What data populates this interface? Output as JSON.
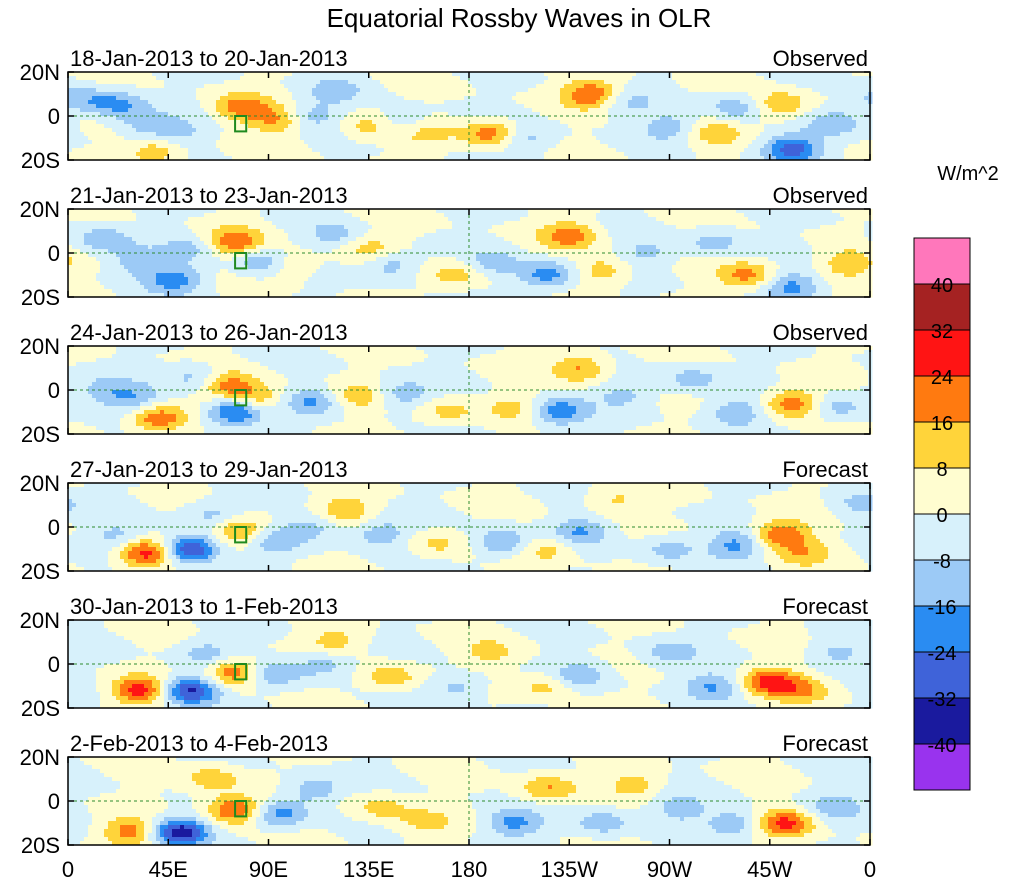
{
  "chart_data": {
    "type": "heatmap",
    "title": "Equatorial Rossby Waves in OLR",
    "colorbar": {
      "label": "W/m^2",
      "levels": [
        -40,
        -32,
        -24,
        -16,
        -8,
        0,
        8,
        16,
        24,
        32,
        40
      ],
      "level_labels": [
        "-40",
        "-32",
        "-24",
        "-16",
        "-8",
        "0",
        "8",
        "16",
        "24",
        "32",
        "40"
      ],
      "colors": [
        "#9933ee",
        "#1a1a9e",
        "#3f63d9",
        "#2a8cf2",
        "#9ccaf6",
        "#d7f1fb",
        "#fffdd0",
        "#ffd43a",
        "#ff7a10",
        "#ff1414",
        "#a52222",
        "#ff77bb"
      ]
    },
    "x_axis": {
      "values": [
        0,
        45,
        90,
        135,
        180,
        225,
        270,
        315,
        360
      ],
      "tick_labels": [
        "0",
        "45E",
        "90E",
        "135E",
        "180",
        "135W",
        "90W",
        "45W",
        "0"
      ],
      "range": [
        0,
        360
      ]
    },
    "y_axis": {
      "values": [
        20,
        0,
        -20
      ],
      "tick_labels": [
        "20N",
        "0",
        "20S"
      ],
      "range": [
        -20,
        20
      ]
    },
    "highlight_box": {
      "lon": [
        75,
        80
      ],
      "lat": [
        -7,
        0
      ]
    },
    "panels": [
      {
        "period": "18-Jan-2013 to 20-Jan-2013",
        "status": "Observed",
        "blobs": [
          [
            22,
            5,
            -18
          ],
          [
            35,
            -4,
            -12
          ],
          [
            50,
            -8,
            -10
          ],
          [
            5,
            8,
            -12
          ],
          [
            40,
            -16,
            15
          ],
          [
            78,
            4,
            20
          ],
          [
            95,
            -2,
            18
          ],
          [
            108,
            0,
            -14
          ],
          [
            120,
            12,
            -10
          ],
          [
            135,
            -5,
            12
          ],
          [
            150,
            -3,
            -10
          ],
          [
            160,
            -8,
            10
          ],
          [
            190,
            -8,
            22
          ],
          [
            205,
            -10,
            -12
          ],
          [
            235,
            10,
            24
          ],
          [
            250,
            6,
            -10
          ],
          [
            270,
            -5,
            -12
          ],
          [
            290,
            -8,
            12
          ],
          [
            300,
            4,
            -14
          ],
          [
            325,
            -15,
            -28
          ],
          [
            320,
            5,
            16
          ],
          [
            345,
            -3,
            -12
          ]
        ]
      },
      {
        "period": "21-Jan-2013 to 23-Jan-2013",
        "status": "Observed",
        "blobs": [
          [
            15,
            6,
            -14
          ],
          [
            30,
            -4,
            -12
          ],
          [
            48,
            -12,
            -20
          ],
          [
            55,
            2,
            -10
          ],
          [
            75,
            5,
            22
          ],
          [
            88,
            -4,
            -20
          ],
          [
            98,
            -5,
            14
          ],
          [
            120,
            8,
            -10
          ],
          [
            135,
            2,
            12
          ],
          [
            145,
            -5,
            -14
          ],
          [
            175,
            -10,
            14
          ],
          [
            190,
            -5,
            -12
          ],
          [
            215,
            -10,
            -22
          ],
          [
            225,
            8,
            20
          ],
          [
            240,
            -8,
            14
          ],
          [
            260,
            0,
            -10
          ],
          [
            290,
            5,
            -12
          ],
          [
            305,
            -10,
            18
          ],
          [
            325,
            -15,
            -18
          ],
          [
            350,
            -5,
            14
          ]
        ]
      },
      {
        "period": "24-Jan-2013 to 26-Jan-2013",
        "status": "Observed",
        "blobs": [
          [
            15,
            0,
            -12
          ],
          [
            40,
            -13,
            24
          ],
          [
            30,
            -4,
            -14
          ],
          [
            58,
            6,
            -12
          ],
          [
            72,
            2,
            20
          ],
          [
            75,
            -10,
            -30
          ],
          [
            85,
            -4,
            16
          ],
          [
            110,
            -5,
            -16
          ],
          [
            130,
            -3,
            12
          ],
          [
            150,
            -2,
            -14
          ],
          [
            170,
            -10,
            12
          ],
          [
            200,
            -8,
            10
          ],
          [
            220,
            -10,
            -22
          ],
          [
            230,
            10,
            18
          ],
          [
            250,
            -2,
            -10
          ],
          [
            280,
            5,
            -12
          ],
          [
            300,
            -10,
            -14
          ],
          [
            325,
            -6,
            22
          ],
          [
            345,
            -8,
            -12
          ]
        ]
      },
      {
        "period": "27-Jan-2013 to 29-Jan-2013",
        "status": "Forecast",
        "blobs": [
          [
            35,
            -12,
            30
          ],
          [
            55,
            -10,
            -36
          ],
          [
            22,
            -4,
            -10
          ],
          [
            65,
            6,
            -12
          ],
          [
            78,
            -2,
            22
          ],
          [
            92,
            -6,
            -14
          ],
          [
            110,
            0,
            -12
          ],
          [
            125,
            8,
            14
          ],
          [
            140,
            -3,
            -14
          ],
          [
            165,
            -8,
            10
          ],
          [
            195,
            -7,
            -18
          ],
          [
            215,
            -10,
            12
          ],
          [
            230,
            -2,
            -16
          ],
          [
            245,
            12,
            10
          ],
          [
            270,
            -10,
            -12
          ],
          [
            300,
            -8,
            -18
          ],
          [
            320,
            -3,
            24
          ],
          [
            330,
            -12,
            12
          ],
          [
            355,
            10,
            -10
          ]
        ]
      },
      {
        "period": "30-Jan-2013 to 1-Feb-2013",
        "status": "Forecast",
        "blobs": [
          [
            32,
            -12,
            28
          ],
          [
            55,
            -12,
            -36
          ],
          [
            75,
            -4,
            26
          ],
          [
            62,
            5,
            -12
          ],
          [
            92,
            -4,
            -16
          ],
          [
            115,
            0,
            -14
          ],
          [
            120,
            10,
            12
          ],
          [
            145,
            -6,
            14
          ],
          [
            175,
            -10,
            -12
          ],
          [
            190,
            5,
            10
          ],
          [
            215,
            -10,
            12
          ],
          [
            230,
            -5,
            -14
          ],
          [
            270,
            5,
            -12
          ],
          [
            290,
            -10,
            -16
          ],
          [
            315,
            -8,
            26
          ],
          [
            330,
            -12,
            14
          ],
          [
            345,
            5,
            -10
          ]
        ]
      },
      {
        "period": "2-Feb-2013 to 4-Feb-2013",
        "status": "Forecast",
        "blobs": [
          [
            28,
            -14,
            20
          ],
          [
            50,
            -14,
            -38
          ],
          [
            75,
            -4,
            28
          ],
          [
            65,
            10,
            14
          ],
          [
            95,
            -6,
            -20
          ],
          [
            110,
            5,
            -14
          ],
          [
            140,
            -3,
            12
          ],
          [
            160,
            -10,
            10
          ],
          [
            200,
            -10,
            -18
          ],
          [
            215,
            6,
            16
          ],
          [
            240,
            -10,
            -14
          ],
          [
            255,
            8,
            12
          ],
          [
            275,
            -3,
            -12
          ],
          [
            300,
            -10,
            -16
          ],
          [
            322,
            -10,
            26
          ],
          [
            345,
            -2,
            -12
          ]
        ]
      }
    ]
  }
}
